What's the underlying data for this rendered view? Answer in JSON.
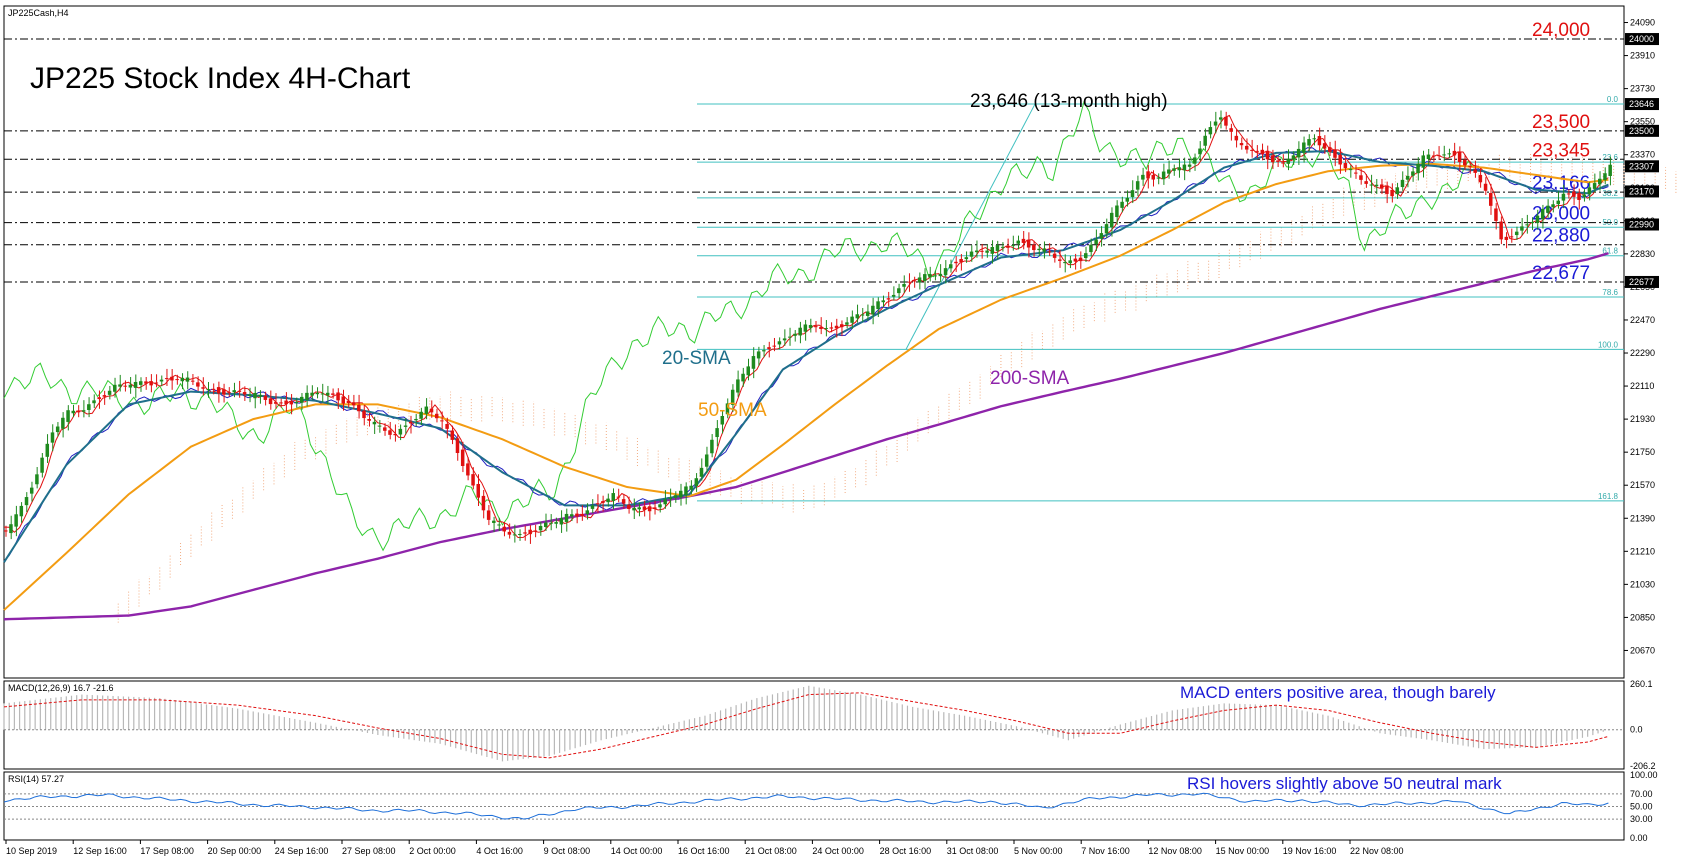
{
  "chart_data": {
    "type": "line",
    "symbol": "JP225Cash,H4",
    "title": "JP225 Stock Index 4H-Chart",
    "colors": {
      "bull": "#1e8a1e",
      "bear": "#e01010",
      "sma20": "#1f6f8b",
      "sma50": "#f39c12",
      "sma200": "#8e24aa",
      "cloud": "#f0a070",
      "chikou": "#33cc33",
      "tenkan": "#e01010",
      "kijun": "#2020c0",
      "fib": "#40c0c0",
      "annot_blue": "#1a1ad6",
      "annot_red": "#e01010"
    },
    "price_axis": {
      "min": 20520,
      "max": 24180,
      "ticks": [
        "24090",
        "23910",
        "23730",
        "23550",
        "23370",
        "23190",
        "23010",
        "22830",
        "22650",
        "22470",
        "22290",
        "22110",
        "21930",
        "21750",
        "21570",
        "21390",
        "21210",
        "21030",
        "20850",
        "20670"
      ]
    },
    "price_boxes": [
      {
        "label": "24000",
        "value": 24000
      },
      {
        "label": "23646",
        "value": 23646
      },
      {
        "label": "23500",
        "value": 23500
      },
      {
        "label": "23307",
        "value": 23307
      },
      {
        "label": "23170",
        "value": 23170
      },
      {
        "label": "22990",
        "value": 22990
      },
      {
        "label": "22677",
        "value": 22677
      }
    ],
    "levels": [
      {
        "label": "24,000",
        "value": 24000,
        "color": "red",
        "start": 0.0
      },
      {
        "label": "23,500",
        "value": 23500,
        "color": "red",
        "start": 0.0
      },
      {
        "label": "23,345",
        "value": 23345,
        "color": "red",
        "start": 0.0
      },
      {
        "label": "23,166",
        "value": 23166,
        "color": "blue",
        "start": 0.0
      },
      {
        "label": "23,000",
        "value": 23000,
        "color": "blue",
        "start": 0.0
      },
      {
        "label": "22,880",
        "value": 22880,
        "color": "blue",
        "start": 0.0
      },
      {
        "label": "22,677",
        "value": 22677,
        "color": "blue",
        "start": 0.0
      }
    ],
    "fib_levels": [
      {
        "label": "0.0",
        "value": 23646
      },
      {
        "label": "23.6",
        "value": 23330
      },
      {
        "label": "38.2",
        "value": 23135
      },
      {
        "label": "50.0",
        "value": 22975
      },
      {
        "label": "61.8",
        "value": 22820
      },
      {
        "label": "78.6",
        "value": 22595
      },
      {
        "label": "100.0",
        "value": 22310
      },
      {
        "label": "161.8",
        "value": 21485
      }
    ],
    "annotations": {
      "high": "23,646 (13-month high)",
      "sma20": "20-SMA",
      "sma50": "50-SMA",
      "sma200": "200-SMA",
      "macd_note": "MACD enters positive area, though barely",
      "rsi_note": "RSI hovers slightly above 50 neutral mark"
    },
    "x_labels": [
      "10 Sep 2019",
      "12 Sep 16:00",
      "17 Sep 08:00",
      "20 Sep 00:00",
      "24 Sep 16:00",
      "27 Sep 08:00",
      "2 Oct 00:00",
      "4 Oct 16:00",
      "9 Oct 08:00",
      "14 Oct 00:00",
      "16 Oct 16:00",
      "21 Oct 08:00",
      "24 Oct 00:00",
      "28 Oct 16:00",
      "31 Oct 08:00",
      "5 Nov 00:00",
      "7 Nov 16:00",
      "12 Nov 08:00",
      "15 Nov 00:00",
      "19 Nov 16:00",
      "22 Nov 08:00"
    ],
    "price_path": [
      [
        0,
        21320
      ],
      [
        3,
        21450
      ],
      [
        6,
        21640
      ],
      [
        9,
        21860
      ],
      [
        12,
        21960
      ],
      [
        15,
        21990
      ],
      [
        18,
        22050
      ],
      [
        21,
        22100
      ],
      [
        24,
        22120
      ],
      [
        27,
        22130
      ],
      [
        30,
        22140
      ],
      [
        33,
        22150
      ],
      [
        36,
        22130
      ],
      [
        39,
        22090
      ],
      [
        42,
        22080
      ],
      [
        45,
        22070
      ],
      [
        48,
        22060
      ],
      [
        51,
        22030
      ],
      [
        54,
        22010
      ],
      [
        57,
        22040
      ],
      [
        60,
        22080
      ],
      [
        63,
        22060
      ],
      [
        66,
        22020
      ],
      [
        69,
        21940
      ],
      [
        72,
        21880
      ],
      [
        75,
        21850
      ],
      [
        78,
        21920
      ],
      [
        81,
        21980
      ],
      [
        84,
        21920
      ],
      [
        87,
        21760
      ],
      [
        90,
        21560
      ],
      [
        93,
        21380
      ],
      [
        96,
        21320
      ],
      [
        99,
        21300
      ],
      [
        102,
        21330
      ],
      [
        105,
        21360
      ],
      [
        108,
        21400
      ],
      [
        111,
        21420
      ],
      [
        114,
        21470
      ],
      [
        117,
        21510
      ],
      [
        120,
        21450
      ],
      [
        123,
        21440
      ],
      [
        126,
        21460
      ],
      [
        129,
        21520
      ],
      [
        132,
        21560
      ],
      [
        135,
        21740
      ],
      [
        138,
        21960
      ],
      [
        141,
        22130
      ],
      [
        144,
        22270
      ],
      [
        147,
        22330
      ],
      [
        150,
        22360
      ],
      [
        153,
        22420
      ],
      [
        156,
        22440
      ],
      [
        159,
        22420
      ],
      [
        162,
        22460
      ],
      [
        165,
        22500
      ],
      [
        168,
        22560
      ],
      [
        171,
        22620
      ],
      [
        174,
        22680
      ],
      [
        177,
        22700
      ],
      [
        180,
        22730
      ],
      [
        183,
        22790
      ],
      [
        186,
        22830
      ],
      [
        189,
        22850
      ],
      [
        192,
        22870
      ],
      [
        195,
        22900
      ],
      [
        198,
        22860
      ],
      [
        201,
        22830
      ],
      [
        204,
        22780
      ],
      [
        207,
        22810
      ],
      [
        210,
        22900
      ],
      [
        213,
        23040
      ],
      [
        216,
        23150
      ],
      [
        219,
        23260
      ],
      [
        222,
        23240
      ],
      [
        225,
        23300
      ],
      [
        228,
        23310
      ],
      [
        231,
        23480
      ],
      [
        234,
        23580
      ],
      [
        237,
        23430
      ],
      [
        240,
        23400
      ],
      [
        243,
        23360
      ],
      [
        246,
        23310
      ],
      [
        249,
        23400
      ],
      [
        252,
        23470
      ],
      [
        255,
        23380
      ],
      [
        258,
        23300
      ],
      [
        261,
        23230
      ],
      [
        264,
        23200
      ],
      [
        267,
        23160
      ],
      [
        270,
        23250
      ],
      [
        273,
        23350
      ],
      [
        276,
        23380
      ],
      [
        279,
        23370
      ],
      [
        282,
        23290
      ],
      [
        285,
        23180
      ],
      [
        288,
        22910
      ],
      [
        291,
        22950
      ],
      [
        294,
        23010
      ],
      [
        297,
        23080
      ],
      [
        300,
        23160
      ],
      [
        303,
        23140
      ],
      [
        306,
        23200
      ],
      [
        309,
        23310
      ]
    ],
    "sma20_path": [
      [
        0,
        21150
      ],
      [
        12,
        21680
      ],
      [
        24,
        22010
      ],
      [
        36,
        22080
      ],
      [
        48,
        22060
      ],
      [
        60,
        22030
      ],
      [
        72,
        21960
      ],
      [
        84,
        21880
      ],
      [
        96,
        21640
      ],
      [
        108,
        21460
      ],
      [
        120,
        21460
      ],
      [
        132,
        21520
      ],
      [
        141,
        21850
      ],
      [
        150,
        22200
      ],
      [
        160,
        22380
      ],
      [
        170,
        22530
      ],
      [
        180,
        22660
      ],
      [
        192,
        22810
      ],
      [
        204,
        22850
      ],
      [
        215,
        22960
      ],
      [
        225,
        23120
      ],
      [
        235,
        23300
      ],
      [
        245,
        23380
      ],
      [
        255,
        23390
      ],
      [
        265,
        23330
      ],
      [
        275,
        23310
      ],
      [
        285,
        23280
      ],
      [
        295,
        23180
      ],
      [
        305,
        23160
      ],
      [
        311,
        23230
      ]
    ],
    "sma50_path": [
      [
        0,
        20890
      ],
      [
        12,
        21200
      ],
      [
        24,
        21520
      ],
      [
        36,
        21780
      ],
      [
        48,
        21930
      ],
      [
        60,
        22010
      ],
      [
        72,
        22010
      ],
      [
        84,
        21940
      ],
      [
        96,
        21820
      ],
      [
        108,
        21670
      ],
      [
        120,
        21560
      ],
      [
        132,
        21510
      ],
      [
        141,
        21600
      ],
      [
        150,
        21790
      ],
      [
        160,
        22010
      ],
      [
        170,
        22220
      ],
      [
        180,
        22420
      ],
      [
        192,
        22580
      ],
      [
        204,
        22700
      ],
      [
        215,
        22820
      ],
      [
        225,
        22960
      ],
      [
        235,
        23110
      ],
      [
        245,
        23210
      ],
      [
        255,
        23280
      ],
      [
        265,
        23310
      ],
      [
        275,
        23320
      ],
      [
        285,
        23300
      ],
      [
        295,
        23260
      ],
      [
        305,
        23220
      ],
      [
        311,
        23240
      ]
    ],
    "sma200_path": [
      [
        0,
        20840
      ],
      [
        12,
        20850
      ],
      [
        24,
        20860
      ],
      [
        36,
        20910
      ],
      [
        48,
        21000
      ],
      [
        60,
        21090
      ],
      [
        72,
        21170
      ],
      [
        84,
        21260
      ],
      [
        96,
        21330
      ],
      [
        108,
        21390
      ],
      [
        120,
        21450
      ],
      [
        132,
        21510
      ],
      [
        141,
        21560
      ],
      [
        150,
        21640
      ],
      [
        160,
        21730
      ],
      [
        170,
        21820
      ],
      [
        180,
        21900
      ],
      [
        192,
        22000
      ],
      [
        204,
        22080
      ],
      [
        215,
        22150
      ],
      [
        225,
        22220
      ],
      [
        235,
        22290
      ],
      [
        245,
        22370
      ],
      [
        255,
        22450
      ],
      [
        265,
        22530
      ],
      [
        275,
        22600
      ],
      [
        285,
        22670
      ],
      [
        295,
        22740
      ],
      [
        305,
        22800
      ],
      [
        311,
        22850
      ]
    ],
    "macd": {
      "label": "MACD(12,26,9) 16.7 -21.6",
      "axis_ticks": [
        "260.1",
        "0.0",
        "-206.2"
      ],
      "min": -206.2,
      "max": 260.1,
      "hist": [
        [
          0,
          150
        ],
        [
          15,
          200
        ],
        [
          30,
          180
        ],
        [
          45,
          120
        ],
        [
          60,
          40
        ],
        [
          72,
          -30
        ],
        [
          84,
          -80
        ],
        [
          96,
          -180
        ],
        [
          105,
          -150
        ],
        [
          115,
          -60
        ],
        [
          125,
          10
        ],
        [
          135,
          80
        ],
        [
          145,
          180
        ],
        [
          155,
          250
        ],
        [
          165,
          200
        ],
        [
          175,
          130
        ],
        [
          185,
          80
        ],
        [
          195,
          20
        ],
        [
          205,
          -60
        ],
        [
          215,
          30
        ],
        [
          225,
          110
        ],
        [
          235,
          150
        ],
        [
          245,
          140
        ],
        [
          255,
          80
        ],
        [
          265,
          -20
        ],
        [
          275,
          -60
        ],
        [
          285,
          -110
        ],
        [
          295,
          -100
        ],
        [
          305,
          -40
        ],
        [
          311,
          16.7
        ]
      ],
      "signal": [
        [
          0,
          130
        ],
        [
          15,
          170
        ],
        [
          30,
          170
        ],
        [
          45,
          140
        ],
        [
          60,
          80
        ],
        [
          72,
          10
        ],
        [
          84,
          -50
        ],
        [
          96,
          -140
        ],
        [
          105,
          -160
        ],
        [
          115,
          -110
        ],
        [
          125,
          -40
        ],
        [
          135,
          30
        ],
        [
          145,
          120
        ],
        [
          155,
          200
        ],
        [
          165,
          210
        ],
        [
          175,
          160
        ],
        [
          185,
          110
        ],
        [
          195,
          50
        ],
        [
          205,
          -20
        ],
        [
          215,
          -20
        ],
        [
          225,
          50
        ],
        [
          235,
          110
        ],
        [
          245,
          140
        ],
        [
          255,
          110
        ],
        [
          265,
          40
        ],
        [
          275,
          -20
        ],
        [
          285,
          -70
        ],
        [
          295,
          -100
        ],
        [
          305,
          -70
        ],
        [
          311,
          -21.6
        ]
      ]
    },
    "rsi": {
      "label": "RSI(14) 57.27",
      "axis_ticks": [
        "100.00",
        "70.00",
        "50.00",
        "30.00",
        "0.00"
      ],
      "levels": [
        70,
        50,
        30
      ],
      "path": [
        [
          0,
          60
        ],
        [
          10,
          66
        ],
        [
          20,
          68
        ],
        [
          30,
          62
        ],
        [
          40,
          57
        ],
        [
          50,
          52
        ],
        [
          60,
          49
        ],
        [
          70,
          44
        ],
        [
          80,
          43
        ],
        [
          90,
          38
        ],
        [
          100,
          30
        ],
        [
          110,
          46
        ],
        [
          120,
          50
        ],
        [
          130,
          56
        ],
        [
          140,
          62
        ],
        [
          150,
          66
        ],
        [
          160,
          62
        ],
        [
          170,
          59
        ],
        [
          180,
          57
        ],
        [
          190,
          58
        ],
        [
          200,
          48
        ],
        [
          210,
          63
        ],
        [
          220,
          68
        ],
        [
          230,
          70
        ],
        [
          240,
          58
        ],
        [
          250,
          60
        ],
        [
          260,
          52
        ],
        [
          270,
          55
        ],
        [
          280,
          58
        ],
        [
          290,
          38
        ],
        [
          300,
          55
        ],
        [
          305,
          52
        ],
        [
          311,
          57.27
        ]
      ]
    }
  }
}
